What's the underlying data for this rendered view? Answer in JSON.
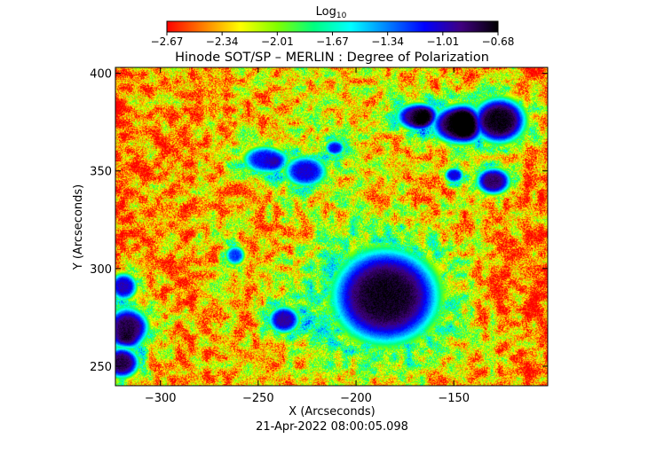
{
  "chart_data": {
    "type": "heatmap",
    "title": "Hinode SOT/SP – MERLIN : Degree of Polarization",
    "colorbar": {
      "label_main": "Log",
      "label_sub": "10",
      "ticks": [
        "-2.67",
        "-2.34",
        "-2.01",
        "-1.67",
        "-1.34",
        "-1.01",
        "-0.68"
      ],
      "range": [
        -2.67,
        -0.68
      ],
      "colormap": [
        "#ff0000",
        "#ff8000",
        "#ffff00",
        "#80ff00",
        "#00ff80",
        "#00ffff",
        "#0080ff",
        "#0000ff",
        "#400080",
        "#000000"
      ]
    },
    "xlabel": "X (Arcseconds)",
    "ylabel": "Y (Arcseconds)",
    "xlim": [
      -323,
      -102
    ],
    "ylim": [
      240,
      403
    ],
    "x_ticks": [
      -300,
      -250,
      -200,
      -150
    ],
    "y_ticks": [
      250,
      300,
      350,
      400
    ],
    "x_tick_labels": [
      "−300",
      "−250",
      "−200",
      "−150"
    ],
    "y_tick_labels": [
      "250",
      "300",
      "350",
      "400"
    ],
    "polarized_regions": [
      {
        "x": -185,
        "y": 286,
        "rx": 28,
        "ry": 25,
        "peak": -0.72
      },
      {
        "x": -169,
        "y": 378,
        "rx": 11,
        "ry": 7,
        "peak": -0.9
      },
      {
        "x": -148,
        "y": 374,
        "rx": 14,
        "ry": 10,
        "peak": -0.75
      },
      {
        "x": -127,
        "y": 376,
        "rx": 14,
        "ry": 12,
        "peak": -0.7
      },
      {
        "x": -130,
        "y": 345,
        "rx": 9,
        "ry": 7,
        "peak": -0.85
      },
      {
        "x": -150,
        "y": 348,
        "rx": 5,
        "ry": 4,
        "peak": -1.05
      },
      {
        "x": -247,
        "y": 356,
        "rx": 11,
        "ry": 7,
        "peak": -1.1
      },
      {
        "x": -226,
        "y": 350,
        "rx": 11,
        "ry": 8,
        "peak": -1.05
      },
      {
        "x": -211,
        "y": 362,
        "rx": 5,
        "ry": 4,
        "peak": -1.1
      },
      {
        "x": -237,
        "y": 274,
        "rx": 8,
        "ry": 7,
        "peak": -0.95
      },
      {
        "x": -317,
        "y": 270,
        "rx": 11,
        "ry": 10,
        "peak": -0.8
      },
      {
        "x": -320,
        "y": 252,
        "rx": 9,
        "ry": 8,
        "peak": -0.8
      },
      {
        "x": -319,
        "y": 291,
        "rx": 7,
        "ry": 7,
        "peak": -1.0
      },
      {
        "x": -262,
        "y": 307,
        "rx": 5,
        "ry": 5,
        "peak": -1.2
      }
    ],
    "timestamp": "21-Apr-2022 08:00:05.098"
  }
}
